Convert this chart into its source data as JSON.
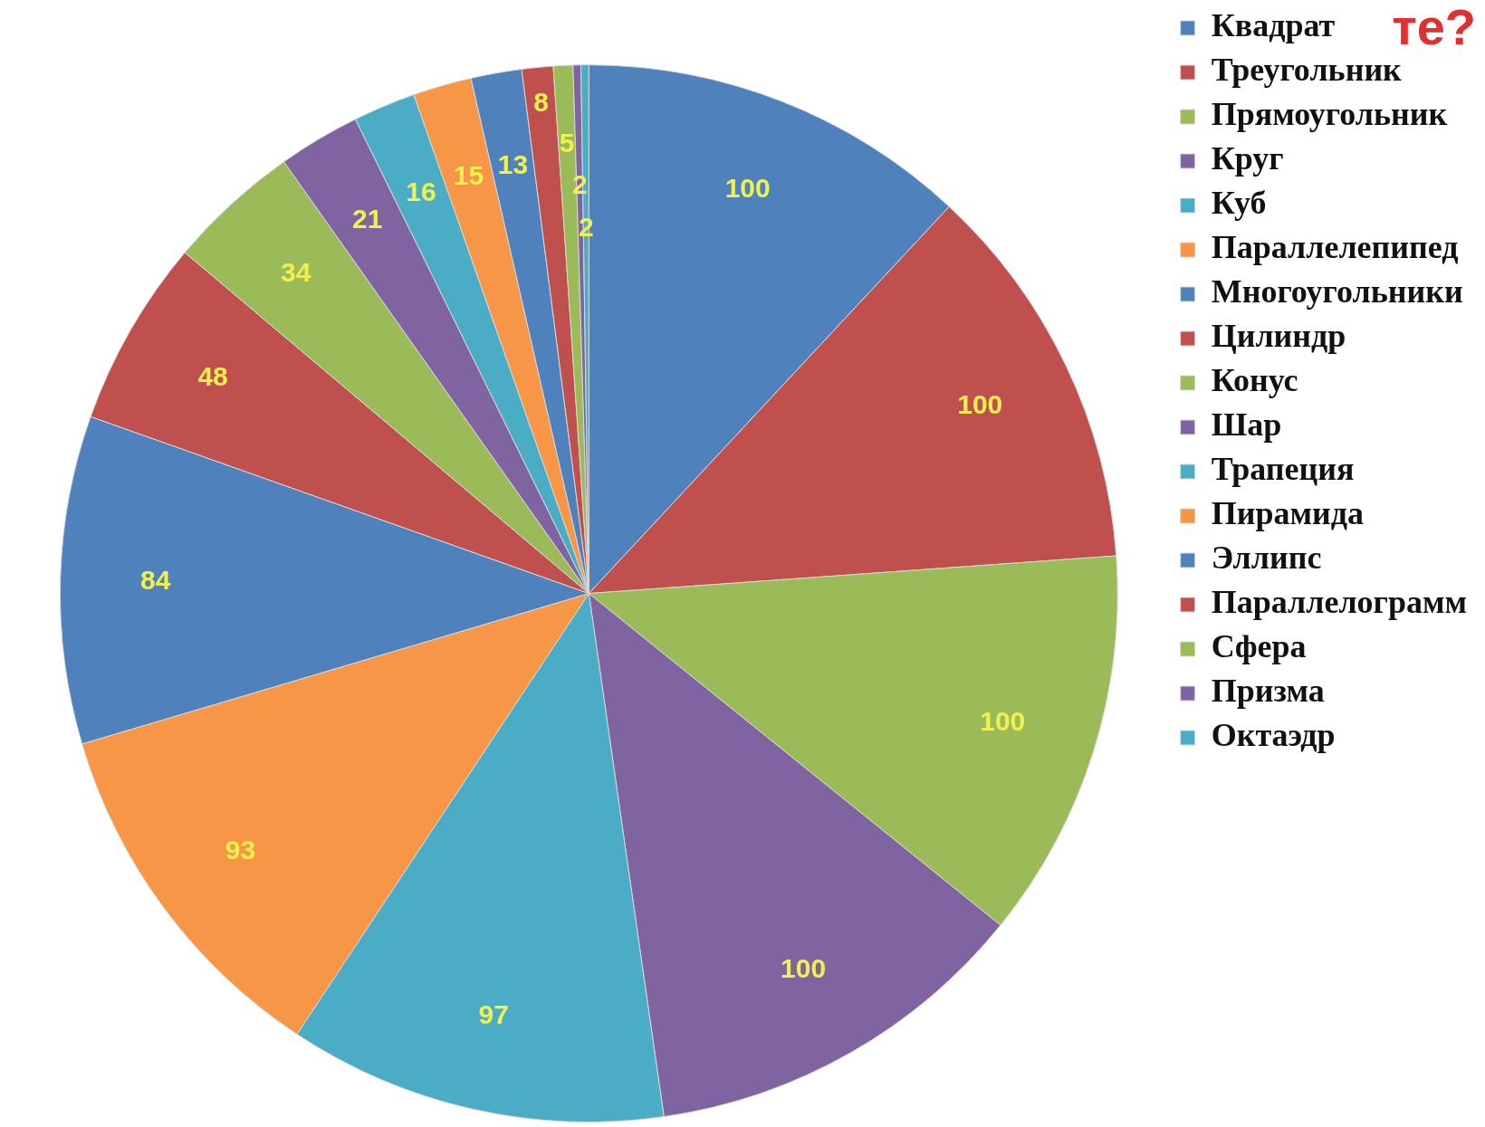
{
  "chart_data": {
    "type": "pie",
    "title": "те?",
    "categories": [
      "Квадрат",
      "Треугольник",
      "Прямоугольник",
      "Круг",
      "Куб",
      "Параллелепипед",
      "Многоугольники",
      "Цилиндр",
      "Конус",
      "Шар",
      "Трапеция",
      "Пирамида",
      "Эллипс",
      "Параллелограмм",
      "Сфера",
      "Призма",
      "Октаэдр"
    ],
    "values": [
      100,
      100,
      100,
      100,
      97,
      93,
      84,
      48,
      34,
      21,
      16,
      15,
      13,
      8,
      5,
      2,
      2
    ],
    "colors": [
      "#4f81bd",
      "#c0504d",
      "#9bbb59",
      "#8064a2",
      "#4bacc6",
      "#f79646",
      "#4f81bd",
      "#c0504d",
      "#9bbb59",
      "#8064a2",
      "#4bacc6",
      "#f79646",
      "#4f81bd",
      "#c0504d",
      "#9bbb59",
      "#8064a2",
      "#4bacc6"
    ],
    "data_labels": true,
    "legend": "top right"
  }
}
